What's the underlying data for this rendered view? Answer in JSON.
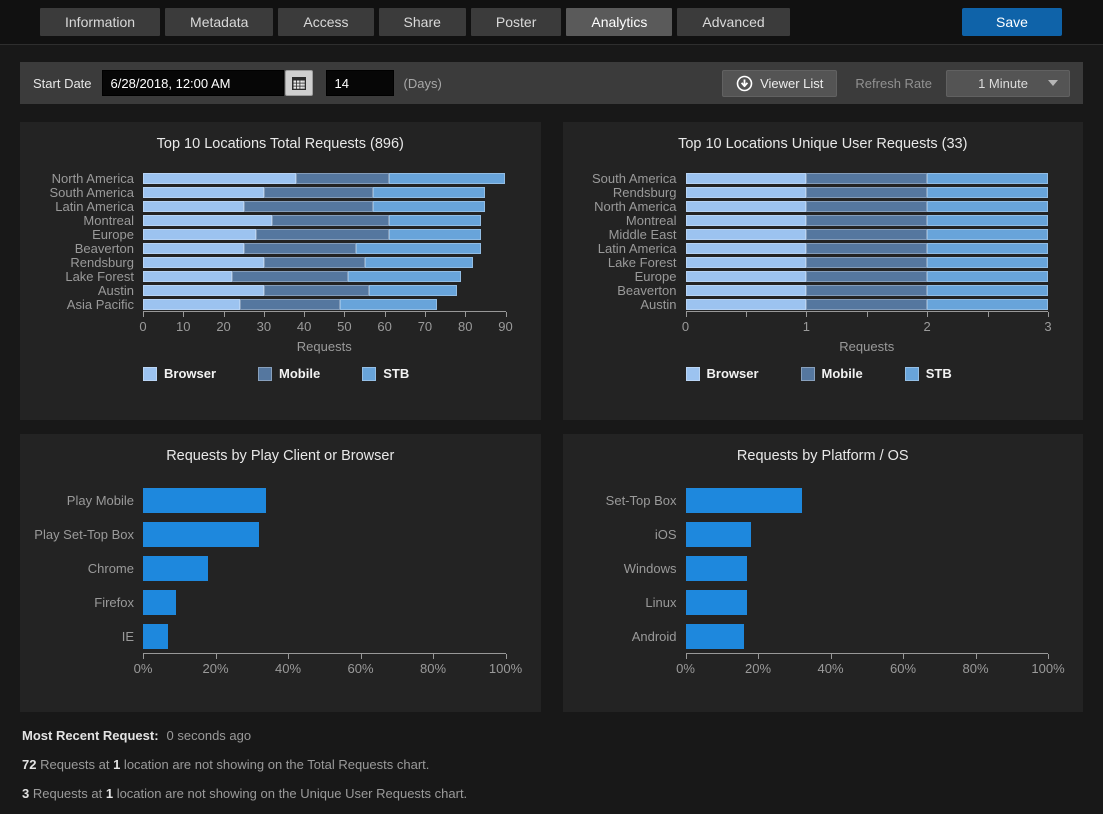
{
  "tabs": {
    "items": [
      "Information",
      "Metadata",
      "Access",
      "Share",
      "Poster",
      "Analytics",
      "Advanced"
    ],
    "active": "Analytics",
    "save_label": "Save"
  },
  "toolbar": {
    "start_date_label": "Start Date",
    "date_value": "6/28/2018, 12:00 AM",
    "days_value": "14",
    "days_label": "(Days)",
    "viewer_list_label": "Viewer List",
    "refresh_rate_label": "Refresh Rate",
    "refresh_rate_value": "1 Minute"
  },
  "colors": {
    "save_button": "#0f63a9",
    "browser_series": "#9cc3f0",
    "mobile_series": "#55779f",
    "stb_series": "#68a4da",
    "bright_bar": "#1e88dd",
    "panel_bg": "#232323",
    "page_bg": "#181818"
  },
  "chart_data": [
    {
      "type": "bar",
      "stacked": true,
      "title": "Top 10 Locations Total Requests (896)",
      "categories": [
        "North America",
        "South America",
        "Latin America",
        "Montreal",
        "Europe",
        "Beaverton",
        "Rendsburg",
        "Lake Forest",
        "Austin",
        "Asia Pacific"
      ],
      "series": [
        {
          "name": "Browser",
          "color": "#9cc3f0",
          "values": [
            38,
            30,
            25,
            32,
            28,
            25,
            30,
            22,
            30,
            24
          ]
        },
        {
          "name": "Mobile",
          "color": "#55779f",
          "values": [
            23,
            27,
            32,
            29,
            33,
            28,
            25,
            29,
            26,
            25
          ]
        },
        {
          "name": "STB",
          "color": "#68a4da",
          "values": [
            29,
            28,
            28,
            23,
            23,
            31,
            27,
            28,
            22,
            24
          ]
        }
      ],
      "xlabel": "Requests",
      "xlim": [
        0,
        90
      ],
      "ticks": [
        {
          "v": 0,
          "label": "0"
        },
        {
          "v": 10,
          "label": "10"
        },
        {
          "v": 20,
          "label": "20"
        },
        {
          "v": 30,
          "label": "30"
        },
        {
          "v": 40,
          "label": "40"
        },
        {
          "v": 50,
          "label": "50"
        },
        {
          "v": 60,
          "label": "60"
        },
        {
          "v": 70,
          "label": "70"
        },
        {
          "v": 80,
          "label": "80"
        },
        {
          "v": 90,
          "label": "90"
        }
      ],
      "legend": [
        "Browser",
        "Mobile",
        "STB"
      ],
      "legend_position": "bottom-left"
    },
    {
      "type": "bar",
      "stacked": true,
      "title": "Top 10 Locations Unique User Requests (33)",
      "categories": [
        "South America",
        "Rendsburg",
        "North America",
        "Montreal",
        "Middle East",
        "Latin America",
        "Lake Forest",
        "Europe",
        "Beaverton",
        "Austin"
      ],
      "series": [
        {
          "name": "Browser",
          "color": "#9cc3f0",
          "values": [
            1,
            1,
            1,
            1,
            1,
            1,
            1,
            1,
            1,
            1
          ]
        },
        {
          "name": "Mobile",
          "color": "#55779f",
          "values": [
            1,
            1,
            1,
            1,
            1,
            1,
            1,
            1,
            1,
            1
          ]
        },
        {
          "name": "STB",
          "color": "#68a4da",
          "values": [
            1,
            1,
            1,
            1,
            1,
            1,
            1,
            1,
            1,
            1
          ]
        }
      ],
      "xlabel": "Requests",
      "xlim": [
        0,
        3
      ],
      "ticks": [
        {
          "v": 0,
          "label": "0"
        },
        {
          "v": 0.5,
          "label": ""
        },
        {
          "v": 1,
          "label": "1"
        },
        {
          "v": 1.5,
          "label": ""
        },
        {
          "v": 2,
          "label": "2"
        },
        {
          "v": 2.5,
          "label": ""
        },
        {
          "v": 3,
          "label": "3"
        }
      ],
      "legend": [
        "Browser",
        "Mobile",
        "STB"
      ],
      "legend_position": "bottom-left"
    },
    {
      "type": "bar",
      "stacked": false,
      "title": "Requests by Play Client or Browser",
      "categories": [
        "Play Mobile",
        "Play Set-Top Box",
        "Chrome",
        "Firefox",
        "IE"
      ],
      "values": [
        34,
        32,
        18,
        9,
        7
      ],
      "color": "#1e88dd",
      "xlabel": "",
      "xlim": [
        0,
        100
      ],
      "ticks": [
        {
          "v": 0,
          "label": "0%"
        },
        {
          "v": 20,
          "label": "20%"
        },
        {
          "v": 40,
          "label": "40%"
        },
        {
          "v": 60,
          "label": "60%"
        },
        {
          "v": 80,
          "label": "80%"
        },
        {
          "v": 100,
          "label": "100%"
        }
      ]
    },
    {
      "type": "bar",
      "stacked": false,
      "title": "Requests by Platform / OS",
      "categories": [
        "Set-Top Box",
        "iOS",
        "Windows",
        "Linux",
        "Android"
      ],
      "values": [
        32,
        18,
        17,
        17,
        16
      ],
      "color": "#1e88dd",
      "xlabel": "",
      "xlim": [
        0,
        100
      ],
      "ticks": [
        {
          "v": 0,
          "label": "0%"
        },
        {
          "v": 20,
          "label": "20%"
        },
        {
          "v": 40,
          "label": "40%"
        },
        {
          "v": 60,
          "label": "60%"
        },
        {
          "v": 80,
          "label": "80%"
        },
        {
          "v": 100,
          "label": "100%"
        }
      ]
    }
  ],
  "footer": {
    "most_recent_label": "Most Recent Request:",
    "most_recent_value": "0 seconds ago",
    "note1": {
      "n1": "72",
      "t1": " Requests at ",
      "n2": "1",
      "t2": " location are not showing on the Total Requests chart."
    },
    "note2": {
      "n1": "3",
      "t1": " Requests at ",
      "n2": "1",
      "t2": " location are not showing on the Unique User Requests chart."
    }
  }
}
